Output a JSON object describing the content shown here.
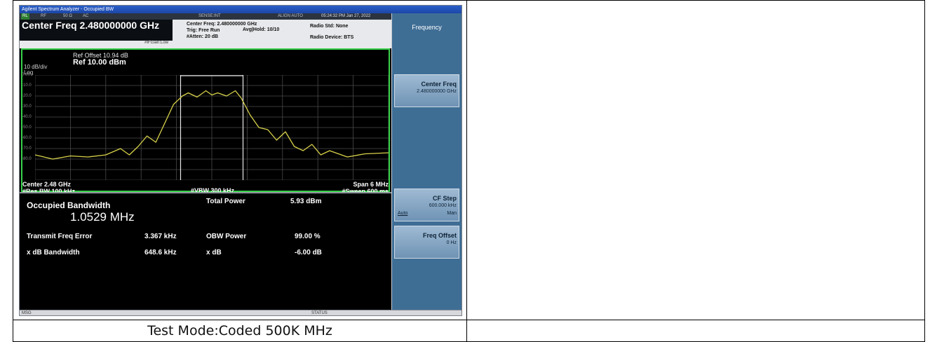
{
  "window": {
    "title": "Agilent Spectrum Analyzer - Occupied BW"
  },
  "status": {
    "rl": "RL",
    "rf": "RF",
    "impedance": "50 Ω",
    "coupling": "AC",
    "sense": "SENSE:INT",
    "align": "ALIGN AUTO",
    "timestamp": "05:24:32 PM Jan 27, 2022"
  },
  "header": {
    "center_freq_display": "Center Freq 2.480000000 GHz",
    "ifgain": "#IFGain:Low",
    "meas_center": "Center Freq: 2.480000000 GHz",
    "trig": "Trig: Free Run",
    "atten": "#Atten: 20 dB",
    "avg_hold": "Avg|Hold: 10/10",
    "radio_std": "Radio Std: None",
    "radio_device": "Radio Device: BTS"
  },
  "graph": {
    "ref_offset": "Ref Offset 10.94 dB",
    "ref_level": "Ref 10.00 dBm",
    "scale_div": "10 dB/div",
    "scale_type": "Log",
    "center": "Center 2.48 GHz",
    "res_bw": "#Res BW 100 kHz",
    "vbw": "#VBW 300 kHz",
    "span": "Span 6 MHz",
    "sweep": "#Sweep 600 ms",
    "trace_color": "#d8d24a",
    "frame_color": "#37d14a"
  },
  "chart_data": {
    "type": "line",
    "x_unit": "MHz",
    "y_unit": "dBm",
    "xlim": [
      2477.0,
      2483.0
    ],
    "ylim": [
      -90,
      10
    ],
    "y_ticks": [
      "0.00",
      "-10.0",
      "-20.0",
      "-30.0",
      "-40.0",
      "-50.0",
      "-60.0",
      "-70.0",
      "-80.0"
    ],
    "series": [
      {
        "x": [
          2477.0,
          2477.3,
          2477.6,
          2477.9,
          2478.2,
          2478.45,
          2478.6,
          2478.75,
          2478.9,
          2479.05,
          2479.2,
          2479.35,
          2479.5,
          2479.6,
          2479.75,
          2479.9,
          2480.0,
          2480.1,
          2480.25,
          2480.4,
          2480.5,
          2480.65,
          2480.8,
          2480.95,
          2481.1,
          2481.25,
          2481.4,
          2481.55,
          2481.7,
          2481.85,
          2482.0,
          2482.3,
          2482.6,
          2483.0
        ],
        "y": [
          -66,
          -70,
          -67,
          -68,
          -66,
          -60,
          -66,
          -58,
          -48,
          -54,
          -36,
          -18,
          -10,
          -7,
          -11,
          -5,
          -9,
          -7,
          -10,
          -5,
          -12,
          -28,
          -40,
          -42,
          -52,
          -44,
          -58,
          -62,
          -56,
          -66,
          -62,
          -68,
          -65,
          -64
        ]
      }
    ],
    "obw_markers_mhz": [
      2479.47,
      2480.53
    ]
  },
  "results": {
    "obw_label": "Occupied Bandwidth",
    "obw_value": "1.0529 MHz",
    "total_power_label": "Total Power",
    "total_power_value": "5.93 dBm",
    "freq_error_label": "Transmit Freq Error",
    "freq_error_value": "3.367 kHz",
    "obw_power_label": "OBW Power",
    "obw_power_value": "99.00 %",
    "xdb_bw_label": "x dB Bandwidth",
    "xdb_bw_value": "648.6 kHz",
    "xdb_label": "x dB",
    "xdb_value": "-6.00 dB"
  },
  "softkeys": {
    "menu_title": "Frequency",
    "center_freq_label": "Center Freq",
    "center_freq_value": "2.480000000 GHz",
    "cf_step_label": "CF Step",
    "cf_step_value": "600.000 kHz",
    "cf_step_auto": "Auto",
    "cf_step_man": "Man",
    "freq_offset_label": "Freq Offset",
    "freq_offset_value": "0 Hz"
  },
  "bottombar": {
    "msg": "MSG",
    "status": "STATUS"
  },
  "caption": {
    "text": "Test Mode:Coded 500K MHz"
  }
}
